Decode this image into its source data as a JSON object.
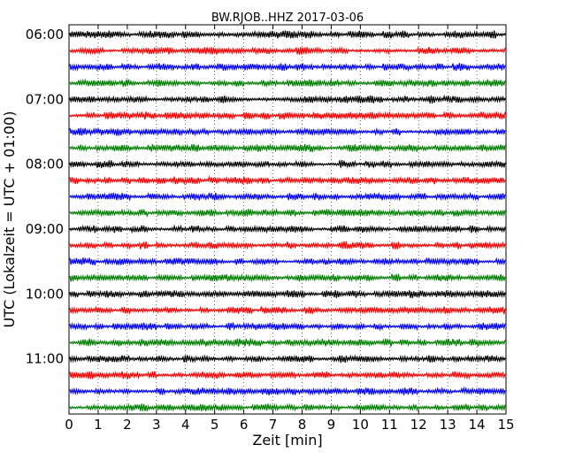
{
  "chart_data": {
    "type": "line",
    "title": "BW.RJOB..HHZ 2017-03-06",
    "xlabel": "Zeit  [min]",
    "ylabel": "UTC (Lokalzeit = UTC + 01:00)",
    "xlim": [
      0,
      15
    ],
    "x_ticks": [
      "0",
      "1",
      "2",
      "3",
      "4",
      "5",
      "6",
      "7",
      "8",
      "9",
      "10",
      "11",
      "12",
      "13",
      "14",
      "15"
    ],
    "y_tick_labels": [
      "06:00",
      "07:00",
      "08:00",
      "09:00",
      "10:00",
      "11:00"
    ],
    "grid": "dotted vertical lines at each minute",
    "trace_colors": [
      "#000000",
      "#ff0000",
      "#0000ff",
      "#008000"
    ],
    "trace_start_times": [
      "06:00",
      "06:15",
      "06:30",
      "06:45",
      "07:00",
      "07:15",
      "07:30",
      "07:45",
      "08:00",
      "08:15",
      "08:30",
      "08:45",
      "09:00",
      "09:15",
      "09:30",
      "09:45",
      "10:00",
      "10:15",
      "10:30",
      "10:45",
      "11:00",
      "11:15",
      "11:30",
      "11:45"
    ],
    "trace_minutes": 15,
    "notes": "Dayplot of 24 seismogram traces, each 15 minutes long, colors cycling black/red/blue/green."
  }
}
